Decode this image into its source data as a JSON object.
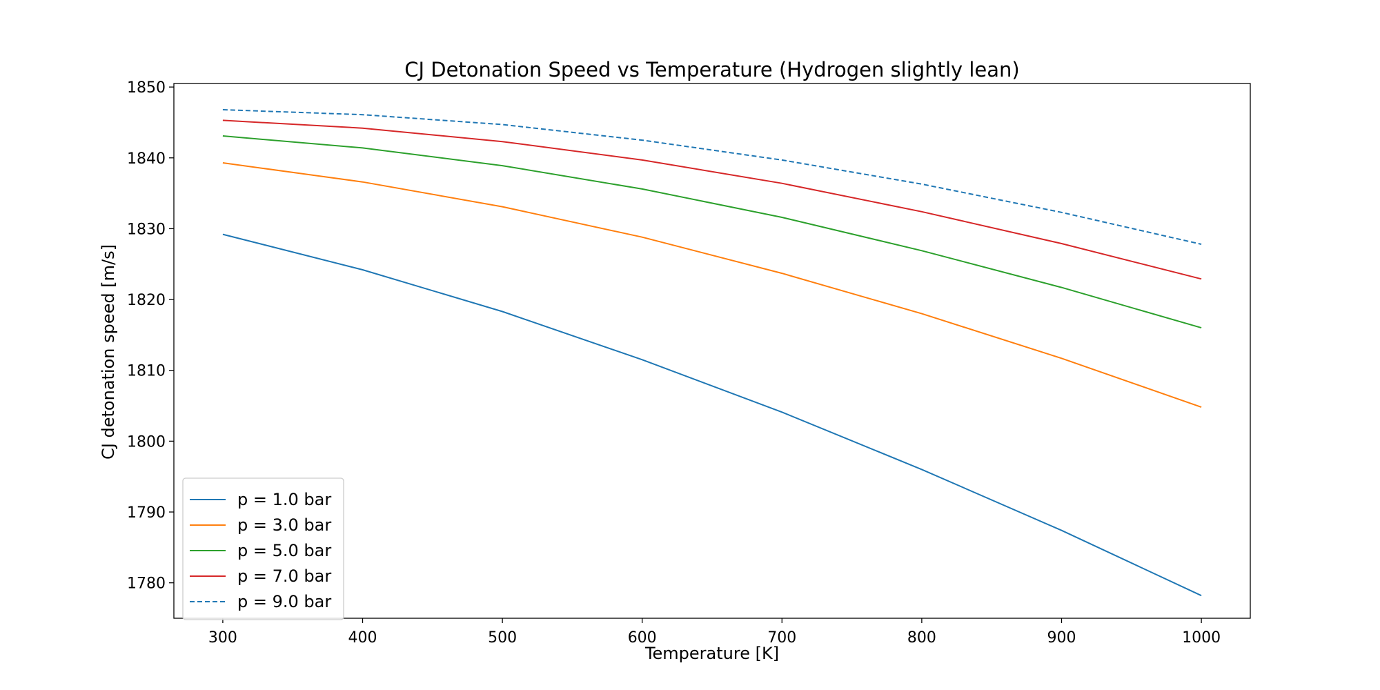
{
  "chart_data": {
    "type": "line",
    "title": "CJ Detonation Speed vs Temperature (Hydrogen slightly lean)",
    "xlabel": "Temperature [K]",
    "ylabel": "CJ detonation speed [m/s]",
    "x": [
      300,
      400,
      500,
      600,
      700,
      800,
      900,
      1000
    ],
    "xlim": [
      265,
      1035
    ],
    "ylim": [
      1775,
      1850.5
    ],
    "xticks": [
      300,
      400,
      500,
      600,
      700,
      800,
      900,
      1000
    ],
    "yticks": [
      1780,
      1790,
      1800,
      1810,
      1820,
      1830,
      1840,
      1850
    ],
    "grid": false,
    "legend_position": "lower-left",
    "series": [
      {
        "name": "p = 1.0 bar",
        "color": "#1f77b4",
        "style": "solid",
        "values": [
          1829.2,
          1824.2,
          1818.3,
          1811.5,
          1804.1,
          1796.0,
          1787.4,
          1778.2
        ]
      },
      {
        "name": "p = 3.0 bar",
        "color": "#ff7f0e",
        "style": "solid",
        "values": [
          1839.3,
          1836.6,
          1833.1,
          1828.8,
          1823.7,
          1818.0,
          1811.7,
          1804.8
        ]
      },
      {
        "name": "p = 5.0 bar",
        "color": "#2ca02c",
        "style": "solid",
        "values": [
          1843.1,
          1841.4,
          1838.9,
          1835.6,
          1831.6,
          1826.9,
          1821.7,
          1816.0
        ]
      },
      {
        "name": "p = 7.0 bar",
        "color": "#d62728",
        "style": "solid",
        "values": [
          1845.3,
          1844.2,
          1842.3,
          1839.7,
          1836.4,
          1832.4,
          1827.9,
          1822.9
        ]
      },
      {
        "name": "p = 9.0 bar",
        "color": "#1f77b4",
        "style": "dashed",
        "values": [
          1846.8,
          1846.1,
          1844.7,
          1842.5,
          1839.7,
          1836.3,
          1832.3,
          1827.8
        ]
      }
    ]
  }
}
